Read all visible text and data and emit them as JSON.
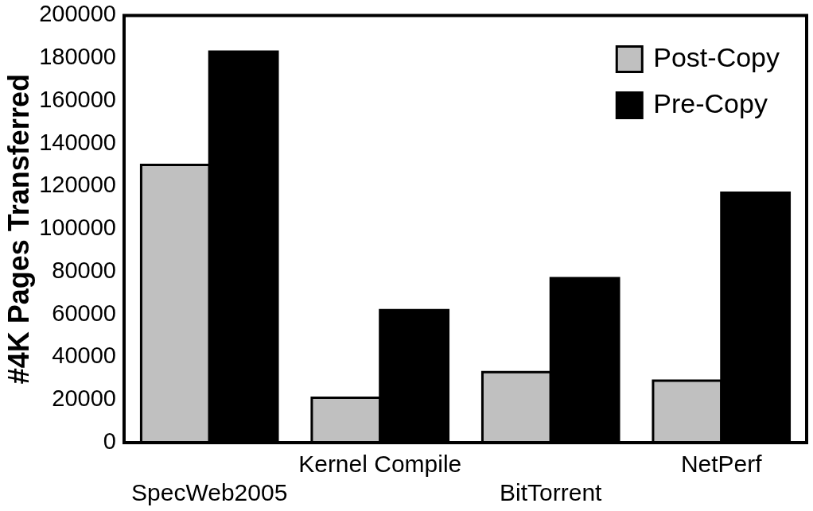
{
  "chart_data": {
    "type": "bar",
    "ylabel": "#4K Pages Transferred",
    "categories": [
      "SpecWeb2005",
      "Kernel Compile",
      "BitTorrent",
      "NetPerf"
    ],
    "series": [
      {
        "name": "Post-Copy",
        "color": "#c0c0c0",
        "values": [
          130000,
          21000,
          33000,
          29000
        ]
      },
      {
        "name": "Pre-Copy",
        "color": "#000000",
        "values": [
          183000,
          62000,
          77000,
          117000
        ]
      }
    ],
    "ylim": [
      0,
      200000
    ],
    "yticks": [
      0,
      20000,
      40000,
      60000,
      80000,
      100000,
      120000,
      140000,
      160000,
      180000,
      200000
    ],
    "grid": false,
    "legend": "top right"
  }
}
